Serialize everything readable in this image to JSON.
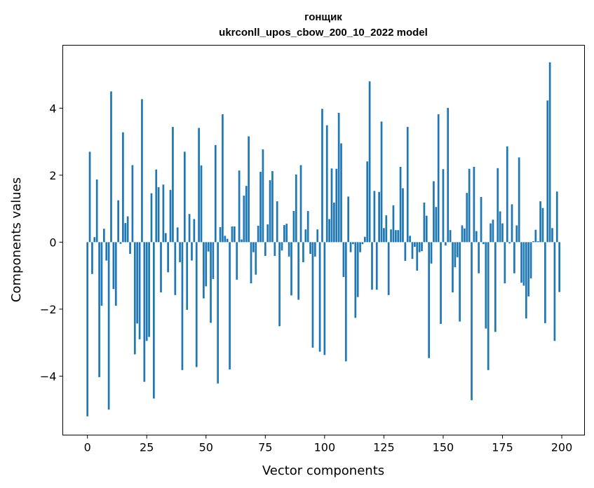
{
  "chart_data": {
    "type": "bar",
    "title_line1": "гонщик",
    "title_line2": "ukrconll_upos_cbow_200_10_2022 model",
    "xlabel": "Vector components",
    "ylabel": "Components values",
    "xlim": [
      -10.4,
      209.6
    ],
    "ylim": [
      -5.76,
      5.88
    ],
    "xticks": [
      0,
      25,
      50,
      75,
      100,
      125,
      150,
      175,
      200
    ],
    "yticks": [
      -4,
      -2,
      0,
      2,
      4
    ],
    "ytick_labels": [
      "−4",
      "−2",
      "0",
      "2",
      "4"
    ],
    "bar_color": "#1f77b4",
    "grid": false,
    "values": [
      -5.2,
      2.7,
      -0.95,
      0.15,
      1.87,
      -4.03,
      -1.9,
      0.4,
      -0.55,
      -5.0,
      4.5,
      -1.4,
      -1.9,
      1.25,
      -0.05,
      3.28,
      0.57,
      0.77,
      -0.35,
      2.3,
      -3.35,
      -2.43,
      -2.9,
      4.27,
      -4.17,
      -2.95,
      -2.83,
      1.46,
      -4.67,
      2.17,
      1.64,
      -1.5,
      1.72,
      0.27,
      -0.9,
      1.56,
      3.44,
      -1.58,
      0.44,
      -0.6,
      -3.82,
      2.7,
      -2.02,
      0.84,
      -0.55,
      0.69,
      -3.73,
      3.41,
      2.29,
      -1.68,
      -1.32,
      -0.28,
      -2.41,
      -1.1,
      2.9,
      -4.22,
      0.45,
      3.82,
      0.19,
      0.1,
      -3.8,
      0.47,
      0.47,
      -1.12,
      2.14,
      0.08,
      1.39,
      1.68,
      3.16,
      -1.23,
      -0.3,
      -0.97,
      0.49,
      2.1,
      2.77,
      -0.41,
      0.53,
      1.85,
      2.12,
      -0.41,
      1.22,
      -2.51,
      -0.25,
      0.51,
      0.55,
      -0.43,
      -1.59,
      0.93,
      2.02,
      -1.72,
      2.3,
      -0.6,
      0.38,
      0.93,
      -0.35,
      -3.15,
      -0.43,
      0.38,
      -3.27,
      3.98,
      -3.37,
      3.49,
      0.69,
      2.2,
      1.18,
      2.19,
      3.86,
      2.95,
      -1.04,
      -3.56,
      1.36,
      -0.3,
      -0.06,
      -2.26,
      -1.64,
      -0.3,
      -0.06,
      0.16,
      2.41,
      4.8,
      -1.42,
      1.53,
      -1.42,
      1.5,
      3.6,
      0.42,
      0.8,
      -1.58,
      0.38,
      1.1,
      0.36,
      0.36,
      2.25,
      1.61,
      -0.56,
      3.44,
      0.19,
      -0.5,
      -0.14,
      -0.85,
      -0.3,
      -0.27,
      1.18,
      0.79,
      -3.46,
      -0.64,
      1.82,
      1.05,
      3.82,
      -2.44,
      2.18,
      -0.1,
      4.01,
      0.36,
      -1.5,
      -0.75,
      -0.45,
      -2.37,
      0.5,
      0.41,
      1.47,
      2.19,
      -4.72,
      2.25,
      0.33,
      -0.93,
      1.35,
      -0.06,
      -2.58,
      -3.82,
      0.56,
      0.67,
      -2.68,
      2.21,
      0.92,
      0.56,
      -1.23,
      2.86,
      -0.04,
      1.13,
      -0.93,
      0.5,
      2.53,
      -1.21,
      -1.3,
      -2.28,
      -1.62,
      -1.08,
      0.03,
      0.37,
      0.03,
      1.22,
      1.02,
      -2.42,
      4.23,
      5.37,
      0.42,
      -2.95,
      1.51,
      -1.49
    ]
  }
}
